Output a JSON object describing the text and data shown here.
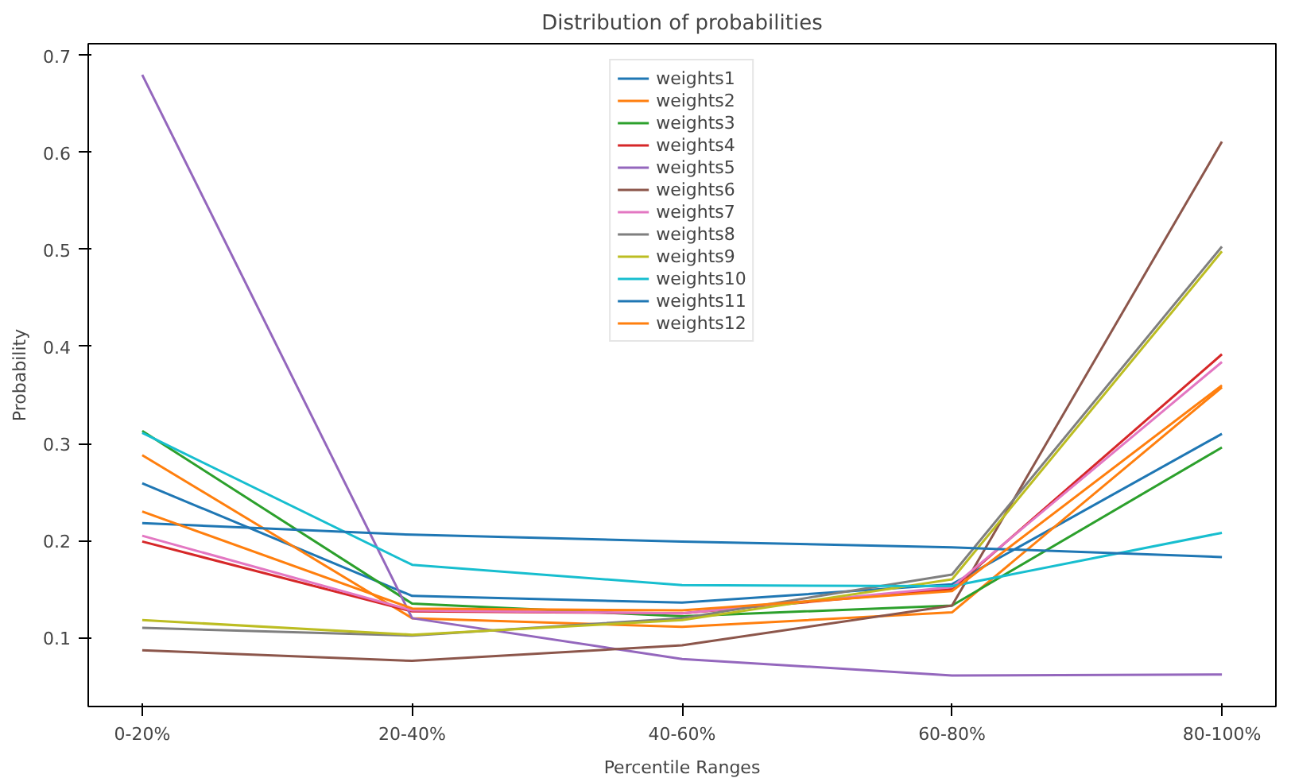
{
  "chart_data": {
    "type": "line",
    "title": "Distribution of probabilities",
    "xlabel": "Percentile Ranges",
    "ylabel": "Probability",
    "categories": [
      "0-20%",
      "20-40%",
      "40-60%",
      "60-80%",
      "80-100%"
    ],
    "ylim": [
      0.029,
      0.712
    ],
    "yticks": [
      0.1,
      0.2,
      0.3,
      0.4,
      0.5,
      0.6,
      0.7
    ],
    "grid": false,
    "legend": "top",
    "line_style": "solid",
    "series": [
      {
        "name": "weights1",
        "color": "#1f77b4",
        "values": [
          0.259,
          0.143,
          0.136,
          0.155,
          0.31
        ]
      },
      {
        "name": "weights2",
        "color": "#ff7f0e",
        "values": [
          0.288,
          0.12,
          0.111,
          0.126,
          0.358
        ]
      },
      {
        "name": "weights3",
        "color": "#2ca02c",
        "values": [
          0.313,
          0.135,
          0.122,
          0.133,
          0.296
        ]
      },
      {
        "name": "weights4",
        "color": "#d62728",
        "values": [
          0.199,
          0.127,
          0.125,
          0.15,
          0.392
        ]
      },
      {
        "name": "weights5",
        "color": "#9467bd",
        "values": [
          0.68,
          0.12,
          0.078,
          0.061,
          0.062
        ]
      },
      {
        "name": "weights6",
        "color": "#8c564b",
        "values": [
          0.087,
          0.076,
          0.092,
          0.133,
          0.611
        ]
      },
      {
        "name": "weights7",
        "color": "#e377c2",
        "values": [
          0.205,
          0.128,
          0.125,
          0.152,
          0.384
        ]
      },
      {
        "name": "weights8",
        "color": "#7f7f7f",
        "values": [
          0.11,
          0.102,
          0.12,
          0.165,
          0.503
        ]
      },
      {
        "name": "weights9",
        "color": "#bcbd22",
        "values": [
          0.118,
          0.103,
          0.118,
          0.16,
          0.498
        ]
      },
      {
        "name": "weights10",
        "color": "#17becf",
        "values": [
          0.311,
          0.175,
          0.154,
          0.153,
          0.208
        ]
      },
      {
        "name": "weights11",
        "color": "#1f77b4",
        "values": [
          0.218,
          0.206,
          0.199,
          0.193,
          0.183
        ]
      },
      {
        "name": "weights12",
        "color": "#ff7f0e",
        "values": [
          0.23,
          0.13,
          0.128,
          0.148,
          0.36
        ]
      }
    ]
  }
}
